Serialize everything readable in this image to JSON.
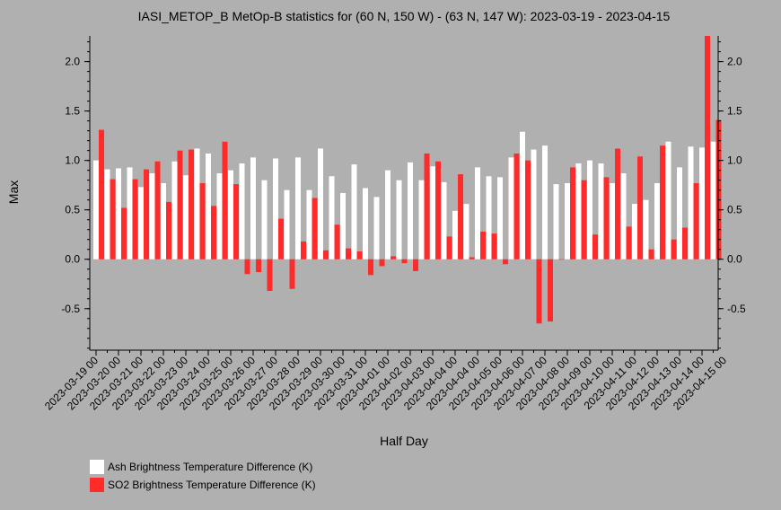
{
  "chart_data": {
    "type": "bar",
    "title": "IASI_METOP_B MetOp-B statistics for (60 N, 150 W) - (63 N, 147 W): 2023-03-19 - 2023-04-15",
    "xlabel": "Half Day",
    "ylabel": "Max",
    "ylim": [
      -0.92,
      2.26
    ],
    "yticks": [
      -0.5,
      0.0,
      0.5,
      1.0,
      1.5,
      2.0
    ],
    "ytick_labels": [
      "-0.5",
      "0.0",
      "0.5",
      "1.0",
      "1.5",
      "2.0"
    ],
    "x_tick_labels": [
      "2023-03-19 00",
      "2023-03-20 00",
      "2023-03-21 00",
      "2023-03-22 00",
      "2023-03-23 00",
      "2023-03-24 00",
      "2023-03-25 00",
      "2023-03-26 00",
      "2023-03-27 00",
      "2023-03-28 00",
      "2023-03-29 00",
      "2023-03-30 00",
      "2023-03-31 00",
      "2023-04-01 00",
      "2023-04-02 00",
      "2023-04-03 00",
      "2023-04-04 00",
      "2023-04-04 00",
      "2023-04-05 00",
      "2023-04-06 00",
      "2023-04-07 00",
      "2023-04-08 00",
      "2023-04-09 00",
      "2023-04-10 00",
      "2023-04-11 00",
      "2023-04-12 00",
      "2023-04-13 00",
      "2023-04-14 00",
      "2023-04-15 00"
    ],
    "legend_position": "bottom-left",
    "series": [
      {
        "name": "Ash Brightness Temperature Difference (K)",
        "color": "#ffffff",
        "values": [
          1.0,
          0.91,
          0.92,
          0.93,
          0.73,
          0.87,
          0.77,
          0.99,
          0.85,
          1.12,
          1.07,
          0.87,
          0.9,
          0.97,
          1.03,
          0.8,
          1.02,
          0.7,
          1.03,
          0.7,
          1.12,
          0.84,
          0.67,
          0.96,
          0.72,
          0.63,
          0.9,
          0.8,
          0.98,
          0.8,
          0.94,
          0.78,
          0.49,
          0.56,
          0.93,
          0.84,
          0.83,
          1.03,
          1.29,
          1.11,
          1.15,
          0.76,
          0.77,
          0.97,
          1.0,
          0.97,
          0.77,
          0.87,
          0.56,
          0.6,
          0.77,
          1.19,
          0.93,
          1.14,
          1.13,
          1.19
        ]
      },
      {
        "name": "SO2 Brightness Temperature Difference (K)",
        "color": "#ff2a2a",
        "values": [
          1.31,
          0.81,
          0.52,
          0.81,
          0.91,
          0.99,
          0.58,
          1.1,
          1.11,
          0.77,
          0.54,
          1.19,
          0.76,
          -0.15,
          -0.13,
          -0.32,
          0.41,
          -0.3,
          0.18,
          0.62,
          0.09,
          0.35,
          0.11,
          0.08,
          -0.16,
          -0.07,
          0.03,
          -0.04,
          -0.12,
          1.07,
          0.99,
          0.23,
          0.86,
          0.02,
          0.28,
          0.26,
          -0.05,
          1.07,
          1.0,
          -0.65,
          -0.63,
          0.0,
          0.93,
          0.8,
          0.25,
          0.83,
          1.12,
          0.33,
          1.04,
          0.1,
          1.15,
          0.2,
          0.32,
          0.77,
          2.26,
          1.41
        ]
      }
    ]
  }
}
